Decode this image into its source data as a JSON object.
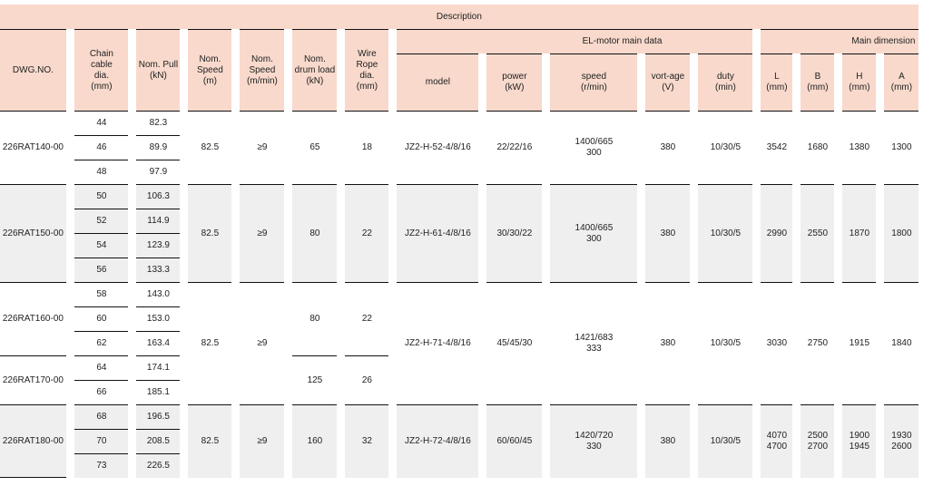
{
  "header": {
    "description": "Description",
    "el_motor_group": "EL-motor main data",
    "main_dimension_group": "Main dimension",
    "columns": {
      "dwg": "DWG.NO.",
      "chain": "Chain\ncable\ndia.\n(mm)",
      "pull": "Nom. Pull\n(kN)",
      "speed_m": "Nom.\nSpeed\n(m)",
      "speed_mmin": "Nom.\nSpeed\n(m/min)",
      "drum_load": "Nom.\ndrum load\n(kN)",
      "wire_rope": "Wire\nRope\ndia.\n(mm)",
      "model": "model",
      "power": "power\n(kW)",
      "motor_speed": "speed\n(r/min)",
      "voltage": "vort-age\n(V)",
      "duty": "duty\n(min)",
      "L": "L\n(mm)",
      "B": "B\n(mm)",
      "H": "H\n(mm)",
      "A": "A\n(mm)"
    }
  },
  "groups": [
    {
      "shade": "white",
      "dwg": [
        "226RAT140-00"
      ],
      "chain": [
        "44",
        "46",
        "48"
      ],
      "pull": [
        "82.3",
        "89.9",
        "97.9"
      ],
      "speed_m": "82.5",
      "speed_mmin": "≥9",
      "drum_load": [
        "65"
      ],
      "wire_rope": [
        "18"
      ],
      "model": "JZ2-H-52-4/8/16",
      "power": "22/22/16",
      "motor_speed": "1400/665\n300",
      "voltage": "380",
      "duty": "10/30/5",
      "L": "3542",
      "B": "1680",
      "H": "1380",
      "A": "1300"
    },
    {
      "shade": "grey",
      "dwg": [
        "226RAT150-00"
      ],
      "chain": [
        "50",
        "52",
        "54",
        "56"
      ],
      "pull": [
        "106.3",
        "114.9",
        "123.9",
        "133.3"
      ],
      "speed_m": "82.5",
      "speed_mmin": "≥9",
      "drum_load": [
        "80"
      ],
      "wire_rope": [
        "22"
      ],
      "model": "JZ2-H-61-4/8/16",
      "power": "30/30/22",
      "motor_speed": "1400/665\n300",
      "voltage": "380",
      "duty": "10/30/5",
      "L": "2990",
      "B": "2550",
      "H": "1870",
      "A": "1800"
    },
    {
      "shade": "white",
      "dwg": [
        "226RAT160-00",
        "226RAT170-00"
      ],
      "split": [
        3,
        2
      ],
      "chain": [
        "58",
        "60",
        "62",
        "64",
        "66"
      ],
      "pull": [
        "143.0",
        "153.0",
        "163.4",
        "174.1",
        "185.1"
      ],
      "speed_m": "82.5",
      "speed_mmin": "≥9",
      "drum_load": [
        "80",
        "125"
      ],
      "wire_rope": [
        "22",
        "26"
      ],
      "model": "JZ2-H-71-4/8/16",
      "power": "45/45/30",
      "motor_speed": "1421/683\n333",
      "voltage": "380",
      "duty": "10/30/5",
      "L": "3030",
      "B": "2750",
      "H": "1915",
      "A": "1840"
    },
    {
      "shade": "grey",
      "dwg": [
        "226RAT180-00"
      ],
      "chain": [
        "68",
        "70",
        "73"
      ],
      "pull": [
        "196.5",
        "208.5",
        "226.5"
      ],
      "speed_m": "82.5",
      "speed_mmin": "≥9",
      "drum_load": [
        "160"
      ],
      "wire_rope": [
        "32"
      ],
      "model": "JZ2-H-72-4/8/16",
      "power": "60/60/45",
      "motor_speed": "1420/720\n330",
      "voltage": "380",
      "duty": "10/30/5",
      "L": "4070\n4700",
      "B": "2500\n2700",
      "H": "1900\n1945",
      "A": "1930\n2600"
    }
  ],
  "colors": {
    "header_bg": "#f8d9cc",
    "grey_row": "#efefef",
    "rule": "#111111"
  }
}
